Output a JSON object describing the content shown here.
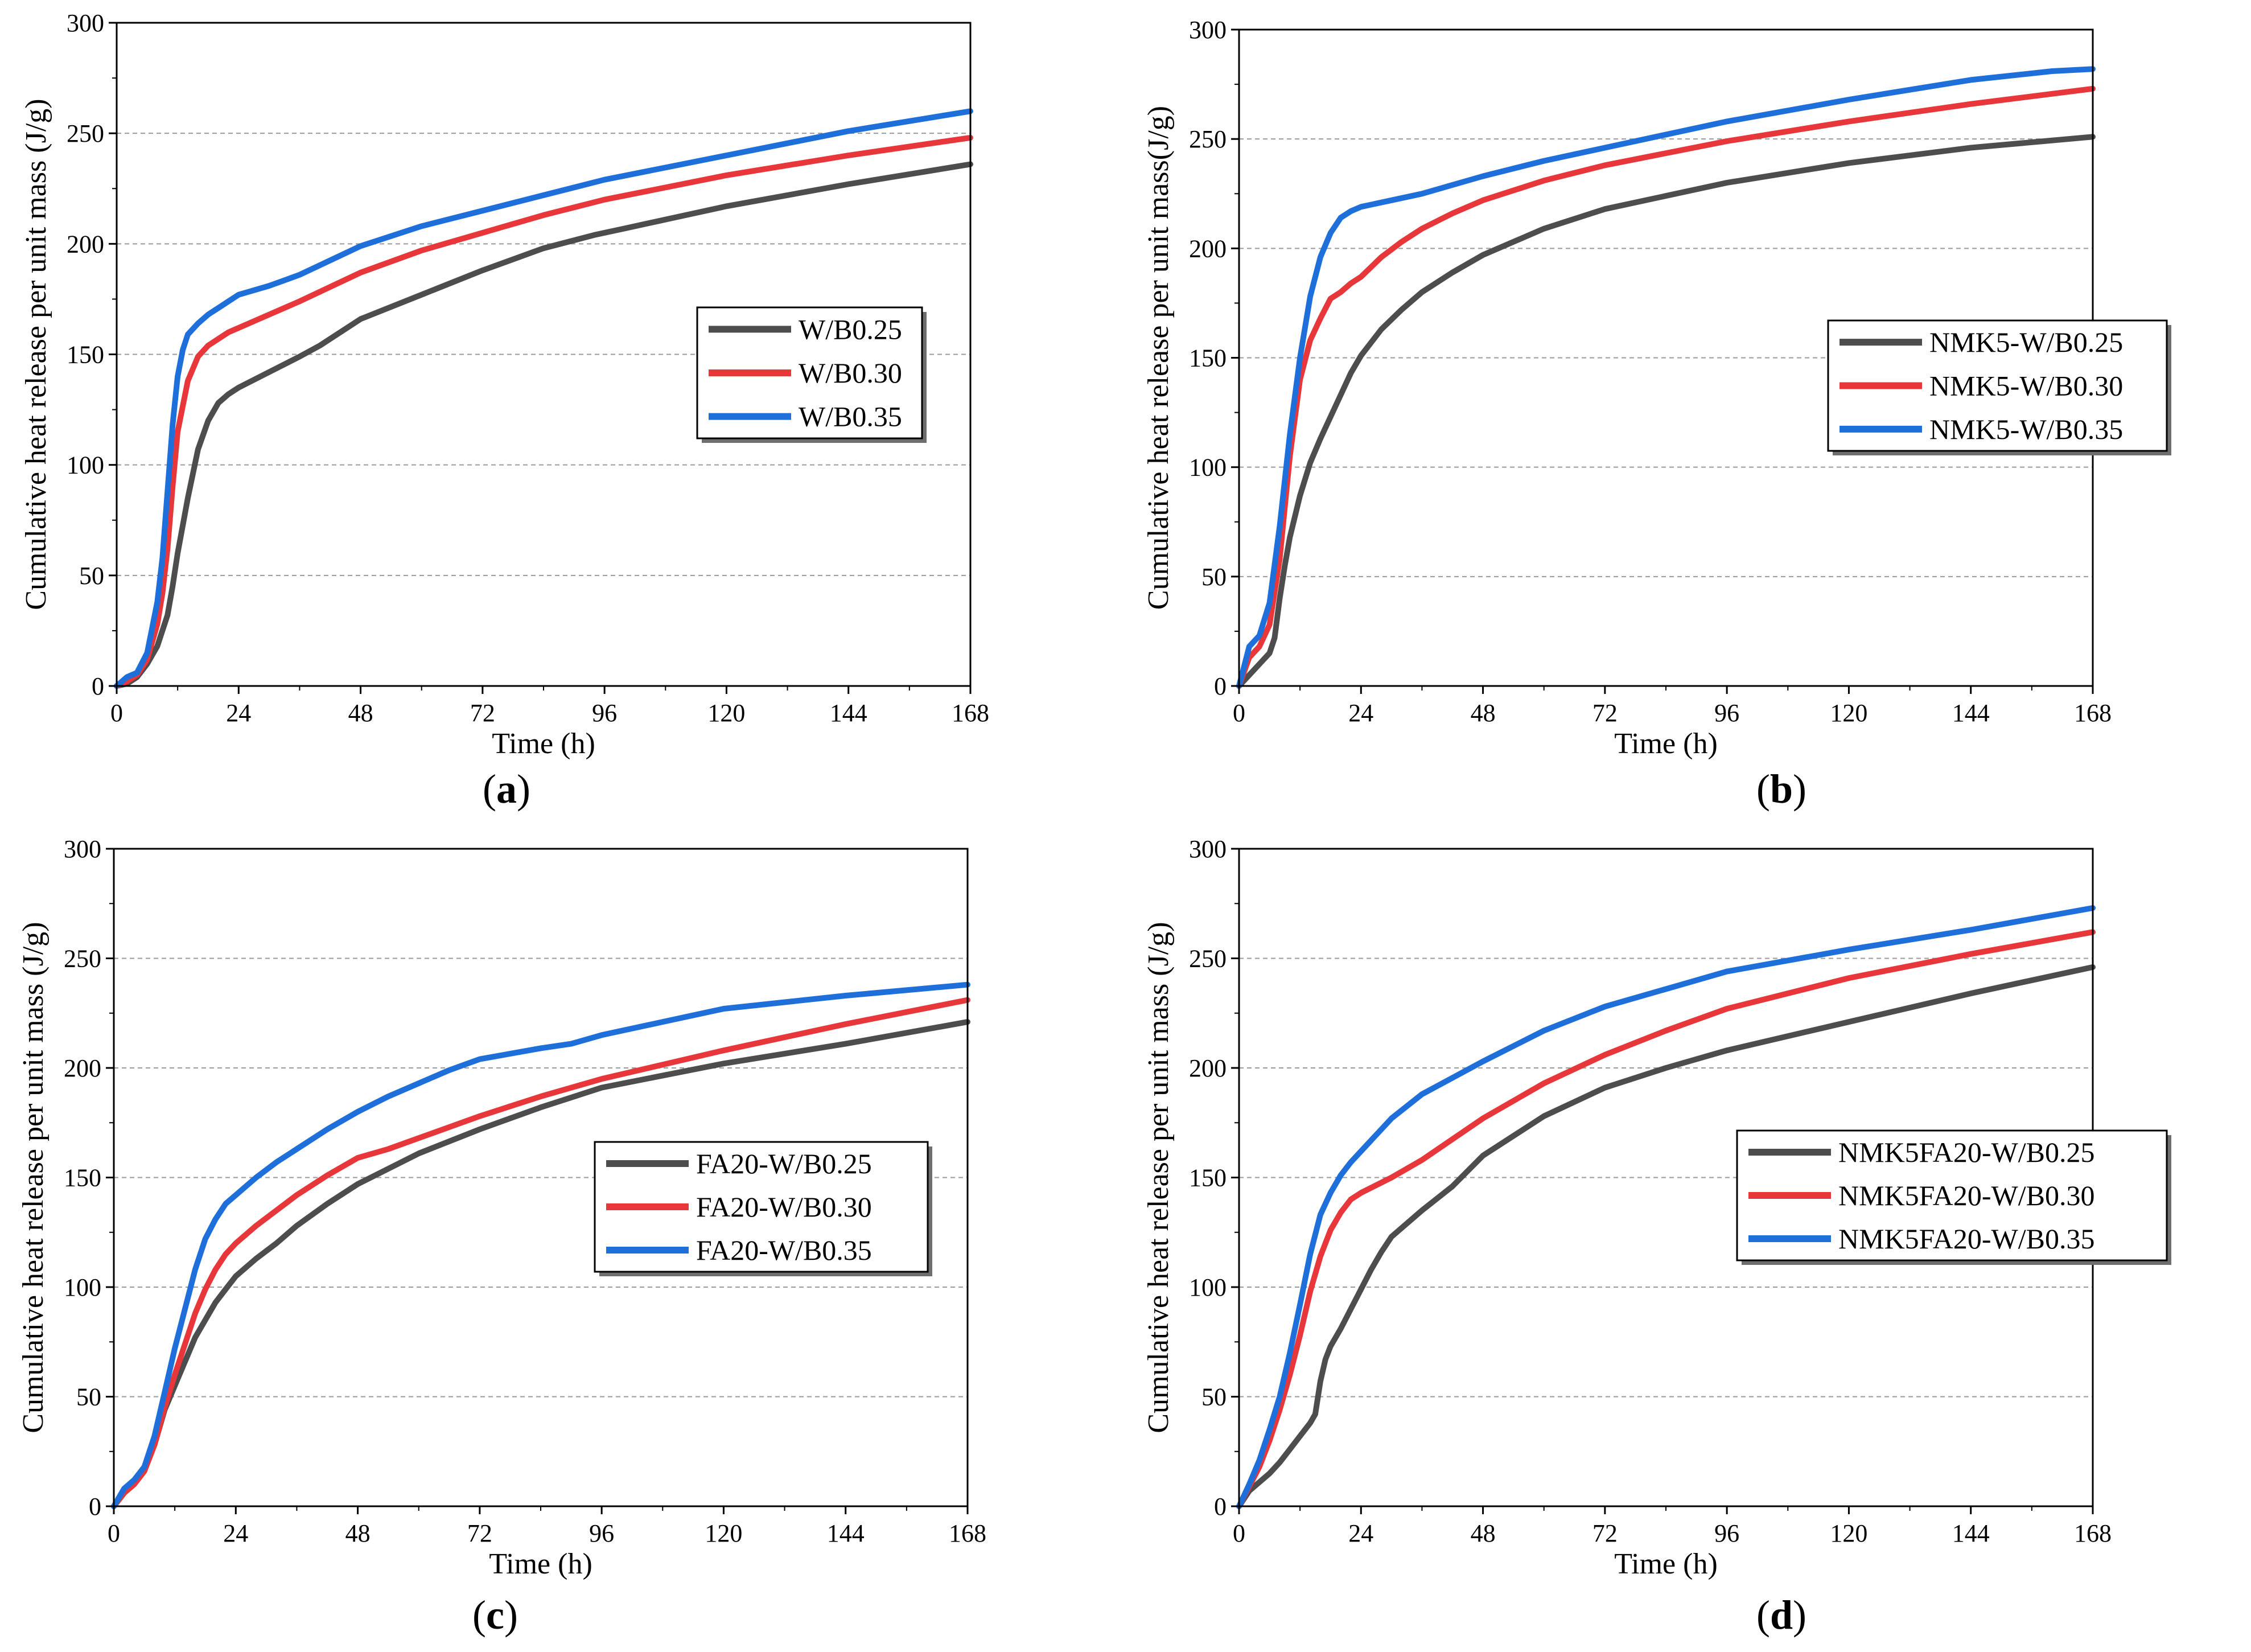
{
  "figure": {
    "panel_labels": [
      "a",
      "b",
      "c",
      "d"
    ]
  },
  "chart_data": [
    {
      "type": "line",
      "panel": "a",
      "title": "",
      "xlabel": "Time (h)",
      "ylabel": "Cumulative heat release per unit mass (J/g)",
      "xlim": [
        0,
        168
      ],
      "ylim": [
        0,
        300
      ],
      "xticks": [
        0,
        24,
        48,
        72,
        96,
        120,
        144,
        168
      ],
      "yticks": [
        0,
        50,
        100,
        150,
        200,
        250,
        300
      ],
      "grid": "horizontal dashed",
      "legend_position": "center-right",
      "series": [
        {
          "name": "W/B0.25",
          "color": "#4d4d4d",
          "x": [
            0,
            2,
            4,
            6,
            8,
            10,
            11,
            12,
            14,
            16,
            18,
            20,
            22,
            24,
            30,
            36,
            40,
            48,
            60,
            72,
            84,
            94,
            100,
            120,
            144,
            168
          ],
          "y": [
            0,
            1,
            4,
            10,
            18,
            32,
            45,
            60,
            85,
            107,
            120,
            128,
            132,
            135,
            142,
            149,
            154,
            166,
            177,
            188,
            198,
            204,
            207,
            217,
            227,
            236
          ]
        },
        {
          "name": "W/B0.30",
          "color": "#e8373a",
          "x": [
            0,
            2,
            4,
            6,
            8,
            9,
            10,
            11,
            12,
            14,
            16,
            18,
            20,
            22,
            24,
            30,
            36,
            48,
            60,
            72,
            84,
            96,
            120,
            144,
            168
          ],
          "y": [
            0,
            2,
            5,
            12,
            28,
            42,
            62,
            90,
            115,
            138,
            149,
            154,
            157,
            160,
            162,
            168,
            174,
            187,
            197,
            205,
            213,
            220,
            231,
            240,
            248
          ]
        },
        {
          "name": "W/B0.35",
          "color": "#1f6fdb",
          "x": [
            0,
            2,
            4,
            6,
            8,
            9,
            10,
            11,
            12,
            13,
            14,
            16,
            18,
            20,
            22,
            24,
            30,
            36,
            48,
            60,
            72,
            84,
            96,
            120,
            144,
            168
          ],
          "y": [
            0,
            4,
            6,
            15,
            38,
            58,
            88,
            118,
            140,
            152,
            159,
            164,
            168,
            171,
            174,
            177,
            181,
            186,
            199,
            208,
            215,
            222,
            229,
            240,
            251,
            260
          ]
        }
      ]
    },
    {
      "type": "line",
      "panel": "b",
      "title": "",
      "xlabel": "Time (h)",
      "ylabel": "Cumulative heat release per unit mass(J/g)",
      "xlim": [
        0,
        168
      ],
      "ylim": [
        0,
        300
      ],
      "xticks": [
        0,
        24,
        48,
        72,
        96,
        120,
        144,
        168
      ],
      "yticks": [
        0,
        50,
        100,
        150,
        200,
        250,
        300
      ],
      "grid": "horizontal dashed",
      "legend_position": "center-right",
      "series": [
        {
          "name": "NMK5-W/B0.25",
          "color": "#4d4d4d",
          "x": [
            0,
            2,
            4,
            6,
            7,
            8,
            9,
            10,
            12,
            14,
            16,
            18,
            20,
            22,
            24,
            28,
            32,
            36,
            42,
            48,
            60,
            72,
            96,
            120,
            144,
            168
          ],
          "y": [
            0,
            5,
            10,
            15,
            22,
            40,
            55,
            68,
            87,
            102,
            113,
            123,
            133,
            143,
            151,
            163,
            172,
            180,
            189,
            197,
            209,
            218,
            230,
            239,
            246,
            251
          ]
        },
        {
          "name": "NMK5-W/B0.30",
          "color": "#e8373a",
          "x": [
            0,
            2,
            4,
            6,
            8,
            10,
            12,
            14,
            16,
            18,
            20,
            22,
            24,
            28,
            32,
            36,
            42,
            48,
            60,
            72,
            96,
            120,
            144,
            168
          ],
          "y": [
            0,
            13,
            18,
            28,
            58,
            105,
            140,
            158,
            168,
            177,
            180,
            184,
            187,
            196,
            203,
            209,
            216,
            222,
            231,
            238,
            249,
            258,
            266,
            273
          ]
        },
        {
          "name": "NMK5-W/B0.35",
          "color": "#1f6fdb",
          "x": [
            0,
            2,
            4,
            6,
            8,
            10,
            12,
            14,
            16,
            18,
            20,
            22,
            24,
            30,
            36,
            48,
            60,
            72,
            96,
            120,
            144,
            160,
            168
          ],
          "y": [
            0,
            18,
            23,
            38,
            73,
            115,
            150,
            178,
            196,
            207,
            214,
            217,
            219,
            222,
            225,
            233,
            240,
            246,
            258,
            268,
            277,
            281,
            282
          ]
        }
      ]
    },
    {
      "type": "line",
      "panel": "c",
      "title": "",
      "xlabel": "Time (h)",
      "ylabel": "Cumulative heat release per unit mass (J/g)",
      "xlim": [
        0,
        168
      ],
      "ylim": [
        0,
        300
      ],
      "xticks": [
        0,
        24,
        48,
        72,
        96,
        120,
        144,
        168
      ],
      "yticks": [
        0,
        50,
        100,
        150,
        200,
        250,
        300
      ],
      "grid": "horizontal dashed",
      "legend_position": "center-right",
      "series": [
        {
          "name": "FA20-W/B0.25",
          "color": "#4d4d4d",
          "x": [
            0,
            2,
            4,
            6,
            8,
            10,
            12,
            14,
            16,
            18,
            20,
            22,
            24,
            28,
            32,
            36,
            42,
            48,
            60,
            72,
            84,
            96,
            120,
            144,
            168
          ],
          "y": [
            0,
            6,
            11,
            17,
            28,
            44,
            55,
            66,
            77,
            85,
            93,
            99,
            105,
            113,
            120,
            128,
            138,
            147,
            161,
            172,
            182,
            191,
            202,
            211,
            221
          ]
        },
        {
          "name": "FA20-W/B0.30",
          "color": "#e8373a",
          "x": [
            0,
            2,
            4,
            6,
            8,
            10,
            12,
            14,
            16,
            18,
            20,
            22,
            24,
            28,
            32,
            36,
            42,
            48,
            54,
            60,
            72,
            84,
            96,
            120,
            144,
            168
          ],
          "y": [
            0,
            6,
            10,
            16,
            28,
            45,
            60,
            74,
            88,
            99,
            108,
            115,
            120,
            128,
            135,
            142,
            151,
            159,
            163,
            168,
            178,
            187,
            195,
            208,
            220,
            231
          ]
        },
        {
          "name": "FA20-W/B0.35",
          "color": "#1f6fdb",
          "x": [
            0,
            2,
            4,
            6,
            8,
            10,
            12,
            14,
            16,
            18,
            20,
            22,
            24,
            28,
            32,
            36,
            42,
            48,
            54,
            60,
            66,
            72,
            84,
            90,
            96,
            108,
            120,
            144,
            168
          ],
          "y": [
            0,
            8,
            12,
            18,
            32,
            52,
            72,
            90,
            108,
            122,
            131,
            138,
            142,
            150,
            157,
            163,
            172,
            180,
            187,
            193,
            199,
            204,
            209,
            211,
            215,
            221,
            227,
            233,
            238
          ]
        }
      ]
    },
    {
      "type": "line",
      "panel": "d",
      "title": "",
      "xlabel": "Time (h)",
      "ylabel": "Cumulative heat release per unit mass (J/g)",
      "xlim": [
        0,
        168
      ],
      "ylim": [
        0,
        300
      ],
      "xticks": [
        0,
        24,
        48,
        72,
        96,
        120,
        144,
        168
      ],
      "yticks": [
        0,
        50,
        100,
        150,
        200,
        250,
        300
      ],
      "grid": "horizontal dashed",
      "legend_position": "center-right",
      "series": [
        {
          "name": "NMK5FA20-W/B0.25",
          "color": "#4d4d4d",
          "x": [
            0,
            2,
            4,
            6,
            8,
            10,
            12,
            14,
            15,
            16,
            17,
            18,
            20,
            22,
            24,
            26,
            28,
            30,
            36,
            42,
            48,
            60,
            72,
            84,
            96,
            120,
            144,
            168
          ],
          "y": [
            0,
            7,
            11,
            15,
            20,
            26,
            32,
            38,
            42,
            57,
            67,
            73,
            81,
            90,
            99,
            108,
            116,
            123,
            135,
            146,
            160,
            178,
            191,
            200,
            208,
            221,
            234,
            246
          ]
        },
        {
          "name": "NMK5FA20-W/B0.30",
          "color": "#e8373a",
          "x": [
            0,
            2,
            4,
            6,
            8,
            10,
            12,
            14,
            16,
            18,
            20,
            22,
            24,
            30,
            36,
            48,
            60,
            72,
            84,
            96,
            120,
            144,
            168
          ],
          "y": [
            0,
            9,
            18,
            30,
            44,
            60,
            78,
            98,
            114,
            126,
            134,
            140,
            143,
            150,
            158,
            177,
            193,
            206,
            217,
            227,
            241,
            252,
            262
          ]
        },
        {
          "name": "NMK5FA20-W/B0.35",
          "color": "#1f6fdb",
          "x": [
            0,
            2,
            4,
            6,
            8,
            10,
            12,
            14,
            16,
            18,
            20,
            22,
            24,
            30,
            36,
            48,
            60,
            72,
            84,
            96,
            120,
            144,
            168
          ],
          "y": [
            0,
            10,
            21,
            35,
            50,
            70,
            92,
            115,
            133,
            143,
            151,
            157,
            162,
            177,
            188,
            203,
            217,
            228,
            236,
            244,
            254,
            263,
            273
          ]
        }
      ]
    }
  ]
}
